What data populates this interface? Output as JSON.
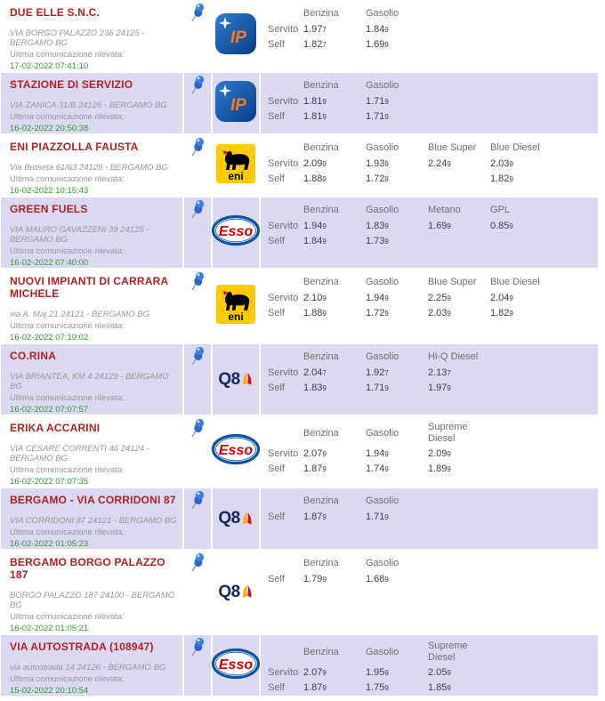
{
  "colors": {
    "row_alt_bg": "#dbd8f1",
    "station_name": "#b22222",
    "address_text": "#989898",
    "update_time": "#2e9b2e",
    "price_text": "#3f3f3f",
    "header_text": "#6f6f6f",
    "ip_blue": "#0b4ea2",
    "ip_orange": "#f47b20",
    "eni_yellow": "#ffcb00",
    "eni_flame_red": "#e2001a",
    "esso_blue": "#0b52a5",
    "esso_red": "#d40000",
    "q8_navy": "#16255f",
    "q8_sail_red": "#e30613",
    "q8_sail_yellow": "#f9b000",
    "pushpin_blue": "#3c7ee0"
  },
  "icons": {
    "pushpin": "blue-3d-pushpin"
  },
  "labels": {
    "last_update": "Ultima comunicazione rilevata:"
  },
  "brands": {
    "ip": {
      "label": "IP"
    },
    "eni": {
      "label": "eni"
    },
    "esso": {
      "label": "Esso"
    },
    "q8": {
      "label": "Q8"
    }
  },
  "stations": [
    {
      "name": "DUE ELLE S.N.C.",
      "address": "VIA BORGO PALAZZO 236 24125 - BERGAMO BG",
      "updated": "17-02-2022 07:41:10",
      "brand": "ip",
      "fuels": [
        "Benzina",
        "Gasolio"
      ],
      "price_rows": [
        {
          "label": "Servito",
          "values": [
            "1.977",
            "1.849"
          ]
        },
        {
          "label": "Self",
          "values": [
            "1.827",
            "1.699"
          ]
        }
      ]
    },
    {
      "name": "STAZIONE DI SERVIZIO",
      "address": "VIA ZANICA 31/B 24126 - BERGAMO BG",
      "updated": "16-02-2022 20:50:38",
      "brand": "ip",
      "fuels": [
        "Benzina",
        "Gasolio"
      ],
      "price_rows": [
        {
          "label": "Servito",
          "values": [
            "1.819",
            "1.719"
          ]
        },
        {
          "label": "Self",
          "values": [
            "1.819",
            "1.719"
          ]
        }
      ]
    },
    {
      "name": "ENI PIAZZOLLA FAUSTA",
      "address": "Via Broseta 61/63 24128 - BERGAMO BG",
      "updated": "16-02-2022 10:15:43",
      "brand": "eni",
      "fuels": [
        "Benzina",
        "Gasolio",
        "Blue Super",
        "Blue Diesel"
      ],
      "price_rows": [
        {
          "label": "Servito",
          "values": [
            "2.099",
            "1.939",
            "2.249",
            "2.039"
          ]
        },
        {
          "label": "Self",
          "values": [
            "1.889",
            "1.729",
            "",
            "1.829"
          ]
        }
      ]
    },
    {
      "name": "GREEN FUELS",
      "address": "VIA MAURO GAVAZZENI 39 24125 - BERGAMO BG",
      "updated": "16-02-2022 07:40:00",
      "brand": "esso",
      "fuels": [
        "Benzina",
        "Gasolio",
        "Metano",
        "GPL"
      ],
      "price_rows": [
        {
          "label": "Servito",
          "values": [
            "1.949",
            "1.839",
            "1.699",
            "0.859"
          ]
        },
        {
          "label": "Self",
          "values": [
            "1.849",
            "1.739",
            "",
            ""
          ]
        }
      ]
    },
    {
      "name": "NUOVI IMPIANTI DI CARRARA MICHELE",
      "address": "via A. Maj 21 24121 - BERGAMO BG",
      "updated": "16-02-2022 07:19:02",
      "brand": "eni",
      "fuels": [
        "Benzina",
        "Gasolio",
        "Blue Super",
        "Blue Diesel"
      ],
      "price_rows": [
        {
          "label": "Servito",
          "values": [
            "2.109",
            "1.949",
            "2.259",
            "2.049"
          ]
        },
        {
          "label": "Self",
          "values": [
            "1.889",
            "1.729",
            "2.039",
            "1.829"
          ]
        }
      ]
    },
    {
      "name": "CO.RINA",
      "address": "VIA BRIANTEA, KM 4 24129 - BERGAMO BG",
      "updated": "16-02-2022 07:07:57",
      "brand": "q8",
      "fuels": [
        "Benzina",
        "Gasolio",
        "Hi-Q Diesel"
      ],
      "price_rows": [
        {
          "label": "Servito",
          "values": [
            "2.047",
            "1.927",
            "2.137"
          ]
        },
        {
          "label": "Self",
          "values": [
            "1.839",
            "1.719",
            "1.979"
          ]
        }
      ]
    },
    {
      "name": "ERIKA ACCARINI",
      "address": "VIA CESARE CORRENTI 46 24124 - BERGAMO BG",
      "updated": "16-02-2022 07:07:35",
      "brand": "esso",
      "fuels": [
        "Benzina",
        "Gasolio",
        "Supreme Diesel"
      ],
      "price_rows": [
        {
          "label": "Servito",
          "values": [
            "2.079",
            "1.949",
            "2.099"
          ]
        },
        {
          "label": "Self",
          "values": [
            "1.879",
            "1.749",
            "1.899"
          ]
        }
      ]
    },
    {
      "name": "BERGAMO - VIA CORRIDONI 87",
      "address": "VIA CORRIDONI 87 24121 - BERGAMO BG",
      "updated": "16-02-2022 01:05:23",
      "brand": "q8",
      "fuels": [
        "Benzina",
        "Gasolio"
      ],
      "price_rows": [
        {
          "label": "Self",
          "values": [
            "1.879",
            "1.719"
          ]
        }
      ]
    },
    {
      "name": "BERGAMO BORGO PALAZZO 187",
      "address": "BORGO PALAZZO 187 24100 - BERGAMO BG",
      "updated": "16-02-2022 01:05:21",
      "brand": "q8",
      "fuels": [
        "Benzina",
        "Gasolio"
      ],
      "price_rows": [
        {
          "label": "Self",
          "values": [
            "1.799",
            "1.689"
          ]
        }
      ]
    },
    {
      "name": "VIA AUTOSTRADA (108947)",
      "address": "via autostrada 14 24126 - BERGAMO BG",
      "updated": "15-02-2022 20:10:54",
      "brand": "esso",
      "fuels": [
        "Benzina",
        "Gasolio",
        "Supreme Diesel"
      ],
      "price_rows": [
        {
          "label": "Servito",
          "values": [
            "2.079",
            "1.959",
            "2.059"
          ]
        },
        {
          "label": "Self",
          "values": [
            "1.879",
            "1.759",
            "1.859"
          ]
        }
      ]
    }
  ]
}
